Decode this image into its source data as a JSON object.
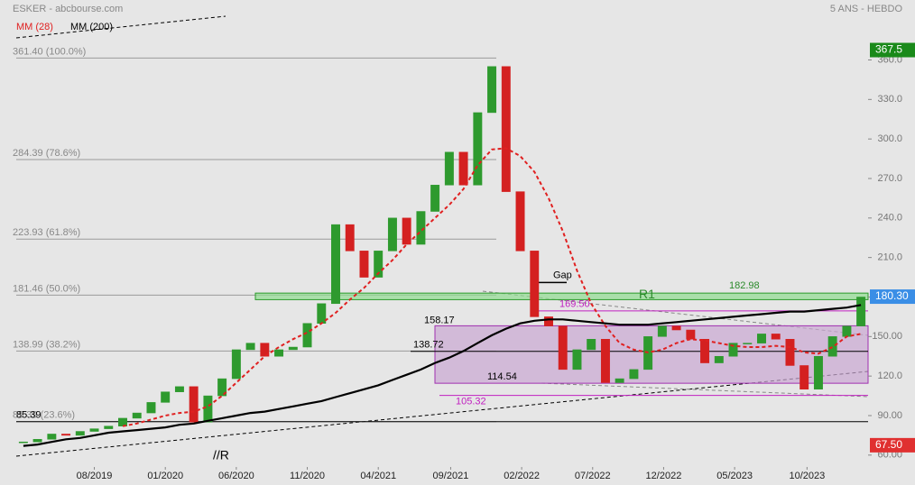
{
  "chart_data": {
    "type": "candlestick",
    "title": "ESKER - abcbourse.com",
    "subtitle": "5 ANS - HEBDO",
    "xlim": [
      0,
      60
    ],
    "xticks": [
      {
        "value": 5.5,
        "label": "08/2019"
      },
      {
        "value": 10.5,
        "label": "01/2020"
      },
      {
        "value": 15.5,
        "label": "06/2020"
      },
      {
        "value": 20.5,
        "label": "11/2020"
      },
      {
        "value": 25.5,
        "label": "04/2021"
      },
      {
        "value": 30.6,
        "label": "09/2021"
      },
      {
        "value": 35.6,
        "label": "02/2022"
      },
      {
        "value": 40.6,
        "label": "07/2022"
      },
      {
        "value": 45.6,
        "label": "12/2022"
      },
      {
        "value": 50.6,
        "label": "05/2023"
      },
      {
        "value": 55.7,
        "label": "10/2023"
      }
    ],
    "ylim": [
      37.3,
      405.5
    ],
    "yticks": [
      {
        "value": 60,
        "label": "60.00"
      },
      {
        "value": 90,
        "label": "90.00"
      },
      {
        "value": 120,
        "label": "120.0"
      },
      {
        "value": 150,
        "label": "150.00"
      },
      {
        "value": 180,
        "label": "180.0"
      },
      {
        "value": 210,
        "label": "210.0"
      },
      {
        "value": 240,
        "label": "240.0"
      },
      {
        "value": 270,
        "label": "270.0"
      },
      {
        "value": 300,
        "label": "300.0"
      },
      {
        "value": 330,
        "label": "330.0"
      },
      {
        "value": 360,
        "label": "360.0"
      }
    ],
    "up_color": "#2e9a2e",
    "down_color": "#d42020",
    "close": [
      70,
      72,
      76,
      75,
      78,
      80,
      82,
      88,
      92,
      100,
      108,
      112,
      85,
      105,
      118,
      140,
      145,
      135,
      140,
      142,
      160,
      175,
      235,
      215,
      195,
      215,
      240,
      220,
      245,
      265,
      290,
      265,
      320,
      355,
      260,
      215,
      165,
      158,
      125,
      140,
      148,
      115,
      118,
      125,
      150,
      158,
      155,
      148,
      130,
      135,
      145,
      145,
      152,
      148,
      128,
      110,
      135,
      150,
      158,
      180
    ],
    "series": [
      {
        "name": "MM (28)",
        "color": "#e02020",
        "dashed": true,
        "values": [
          null,
          null,
          null,
          null,
          null,
          null,
          null,
          82,
          84,
          87,
          90,
          92,
          93,
          97,
          105,
          115,
          125,
          135,
          142,
          148,
          153,
          160,
          168,
          178,
          187,
          198,
          208,
          220,
          230,
          240,
          250,
          262,
          280,
          292,
          293,
          287,
          275,
          255,
          230,
          200,
          175,
          158,
          145,
          140,
          138,
          140,
          145,
          148,
          147,
          145,
          143,
          142,
          142,
          143,
          142,
          138,
          137,
          142,
          150,
          152
        ]
      },
      {
        "name": "MM (200)",
        "color": "#000000",
        "dashed": false,
        "values": [
          67,
          68,
          70,
          72,
          73,
          75,
          77,
          78,
          79,
          80,
          81,
          83,
          84,
          86,
          88,
          90,
          92,
          93,
          95,
          97,
          99,
          101,
          104,
          107,
          110,
          113,
          117,
          121,
          125,
          130,
          134,
          139,
          145,
          151,
          156,
          160,
          162,
          163,
          163,
          162,
          161,
          160,
          159,
          159,
          159,
          160,
          161,
          162,
          163,
          164,
          165,
          166,
          167,
          168,
          169,
          169,
          170,
          171,
          172,
          174
        ]
      }
    ],
    "levels": [
      {
        "value": 361.4,
        "label": "361.40  (100.0%)"
      },
      {
        "value": 284.39,
        "label": "284.39  (78.6%)"
      },
      {
        "value": 223.93,
        "label": "223.93  (61.8%)"
      },
      {
        "value": 181.46,
        "label": "181.46  (50.0%)"
      },
      {
        "value": 138.99,
        "label": "138.99  (38.2%)"
      },
      {
        "value": 85.39,
        "label": "85.39  (23.6%)"
      }
    ],
    "zones": [
      {
        "name": "R1",
        "top": 182.98,
        "bottom": 178,
        "color": "#90dc90"
      },
      {
        "top": 158.17,
        "bottom": 114.54,
        "color": "#c9a6d2"
      }
    ],
    "lines": [
      {
        "value": 138.72,
        "color": "#000000"
      },
      {
        "value": 169.5,
        "label": "169.50",
        "color": "#c020c0"
      },
      {
        "value": 105.32,
        "color": "#c020c0"
      },
      {
        "value": 85.39,
        "color": "#000000"
      }
    ],
    "gap": {
      "text": "Gap",
      "value": 191
    },
    "note": "//R",
    "price_tags": [
      {
        "value": 367.5,
        "color": "#1a8a1a"
      },
      {
        "value": 180.3,
        "label": "180.30",
        "color": "#3a8ee6"
      },
      {
        "value": 67.5,
        "label": "67.50",
        "color": "#e03030"
      }
    ]
  }
}
